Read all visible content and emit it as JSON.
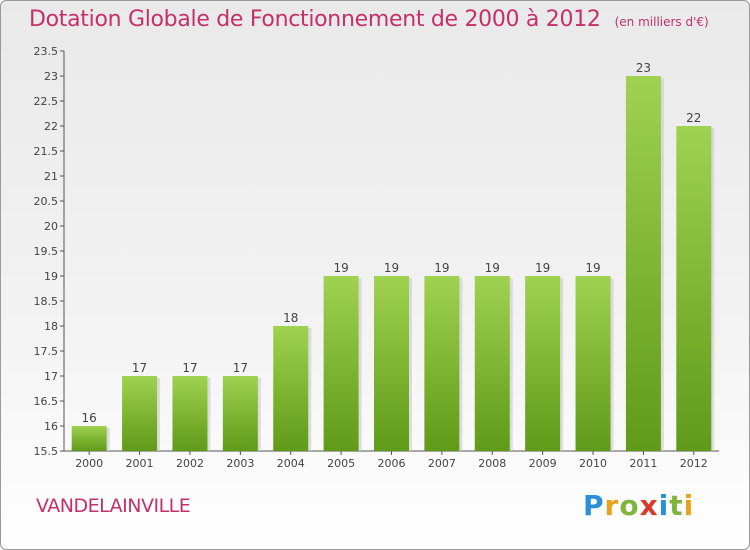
{
  "title": "Dotation Globale de Fonctionnement de 2000 à 2012",
  "subtitle": "(en milliers d'€)",
  "commune": "VANDELAINVILLE",
  "logo": {
    "letters": [
      {
        "ch": "P",
        "color": "#2a8fd6"
      },
      {
        "ch": "r",
        "color": "#e8a21c"
      },
      {
        "ch": "o",
        "color": "#7fb53a"
      },
      {
        "ch": "x",
        "color": "#d63a2a"
      },
      {
        "ch": "i",
        "color": "#2a8fd6"
      },
      {
        "ch": "t",
        "color": "#7fb53a"
      },
      {
        "ch": "i",
        "color": "#e8a21c"
      }
    ]
  },
  "colors": {
    "bar_light": "#9fd250",
    "bar_dark": "#5f9a18",
    "title": "#c4306a"
  },
  "chart_data": {
    "type": "bar",
    "categories": [
      "2000",
      "2001",
      "2002",
      "2003",
      "2004",
      "2005",
      "2006",
      "2007",
      "2008",
      "2009",
      "2010",
      "2011",
      "2012"
    ],
    "values": [
      16,
      17,
      17,
      17,
      18,
      19,
      19,
      19,
      19,
      19,
      19,
      23,
      22
    ],
    "ylim": [
      15.5,
      23.5
    ],
    "yticks": [
      "15.5",
      "16",
      "16.5",
      "17",
      "17.5",
      "18",
      "18.5",
      "19",
      "19.5",
      "20",
      "20.5",
      "21",
      "21.5",
      "22",
      "22.5",
      "23",
      "23.5"
    ],
    "grid": false
  }
}
